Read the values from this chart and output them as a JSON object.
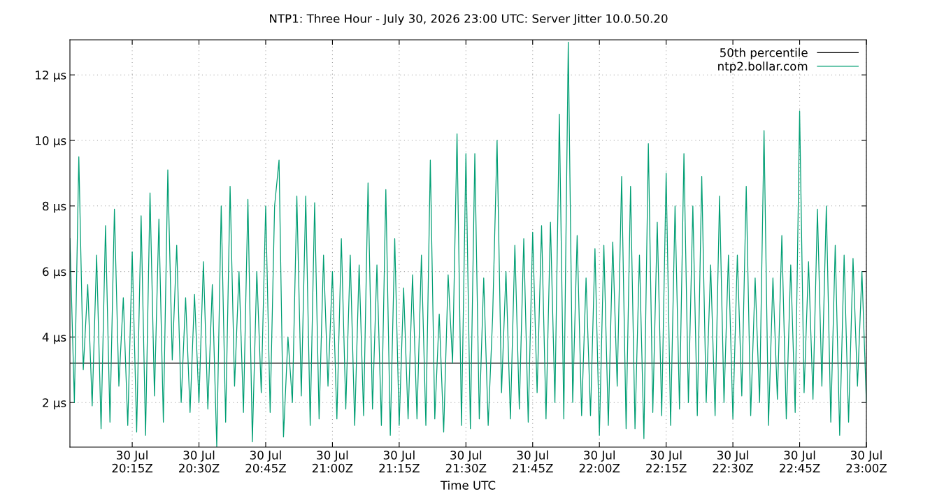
{
  "chart_data": {
    "type": "line",
    "title": "NTP1: Three Hour - July 30, 2026 23:00 UTC: Server Jitter 10.0.50.20",
    "xlabel": "Time UTC",
    "xlim": [
      "2026-07-30T20:01",
      "2026-07-30T23:00"
    ],
    "xticks": [
      {
        "value": "2026-07-30T20:15",
        "label": "30 Jul\n20:15Z"
      },
      {
        "value": "2026-07-30T20:30",
        "label": "30 Jul\n20:30Z"
      },
      {
        "value": "2026-07-30T20:45",
        "label": "30 Jul\n20:45Z"
      },
      {
        "value": "2026-07-30T21:00",
        "label": "30 Jul\n21:00Z"
      },
      {
        "value": "2026-07-30T21:15",
        "label": "30 Jul\n21:15Z"
      },
      {
        "value": "2026-07-30T21:30",
        "label": "30 Jul\n21:30Z"
      },
      {
        "value": "2026-07-30T21:45",
        "label": "30 Jul\n21:45Z"
      },
      {
        "value": "2026-07-30T22:00",
        "label": "30 Jul\n22:00Z"
      },
      {
        "value": "2026-07-30T22:15",
        "label": "30 Jul\n22:15Z"
      },
      {
        "value": "2026-07-30T22:30",
        "label": "30 Jul\n22:30Z"
      },
      {
        "value": "2026-07-30T22:45",
        "label": "30 Jul\n22:45Z"
      },
      {
        "value": "2026-07-30T23:00",
        "label": "30 Jul\n23:00Z"
      }
    ],
    "ylim": [
      0.64,
      13.07
    ],
    "yticks": [
      {
        "value": 2,
        "label": "2 µs"
      },
      {
        "value": 4,
        "label": "4 µs"
      },
      {
        "value": 6,
        "label": "6 µs"
      },
      {
        "value": 8,
        "label": "8 µs"
      },
      {
        "value": 10,
        "label": "10 µs"
      },
      {
        "value": 12,
        "label": "12 µs"
      }
    ],
    "grid": true,
    "legend": "top right",
    "line_style": "solid",
    "series": [
      {
        "name": "50th percentile",
        "color": "#000000",
        "x": [
          "2026-07-30T20:01",
          "2026-07-30T23:00"
        ],
        "values": [
          3.2,
          3.2
        ]
      },
      {
        "name": "ntp2.bollar.com",
        "color": "#009e73",
        "x": [
          "2026-07-30T20:01",
          "2026-07-30T20:02",
          "2026-07-30T20:03",
          "2026-07-30T20:04",
          "2026-07-30T20:05",
          "2026-07-30T20:06",
          "2026-07-30T20:07",
          "2026-07-30T20:08",
          "2026-07-30T20:09",
          "2026-07-30T20:10",
          "2026-07-30T20:11",
          "2026-07-30T20:12",
          "2026-07-30T20:13",
          "2026-07-30T20:14",
          "2026-07-30T20:15",
          "2026-07-30T20:16",
          "2026-07-30T20:17",
          "2026-07-30T20:18",
          "2026-07-30T20:19",
          "2026-07-30T20:20",
          "2026-07-30T20:21",
          "2026-07-30T20:22",
          "2026-07-30T20:23",
          "2026-07-30T20:24",
          "2026-07-30T20:25",
          "2026-07-30T20:26",
          "2026-07-30T20:27",
          "2026-07-30T20:28",
          "2026-07-30T20:29",
          "2026-07-30T20:30",
          "2026-07-30T20:31",
          "2026-07-30T20:32",
          "2026-07-30T20:33",
          "2026-07-30T20:34",
          "2026-07-30T20:35",
          "2026-07-30T20:36",
          "2026-07-30T20:37",
          "2026-07-30T20:38",
          "2026-07-30T20:39",
          "2026-07-30T20:40",
          "2026-07-30T20:41",
          "2026-07-30T20:42",
          "2026-07-30T20:43",
          "2026-07-30T20:44",
          "2026-07-30T20:45",
          "2026-07-30T20:46",
          "2026-07-30T20:47",
          "2026-07-30T20:48",
          "2026-07-30T20:49",
          "2026-07-30T20:50",
          "2026-07-30T20:51",
          "2026-07-30T20:52",
          "2026-07-30T20:53",
          "2026-07-30T20:54",
          "2026-07-30T20:55",
          "2026-07-30T20:56",
          "2026-07-30T20:57",
          "2026-07-30T20:58",
          "2026-07-30T20:59",
          "2026-07-30T21:00",
          "2026-07-30T21:01",
          "2026-07-30T21:02",
          "2026-07-30T21:03",
          "2026-07-30T21:04",
          "2026-07-30T21:05",
          "2026-07-30T21:06",
          "2026-07-30T21:07",
          "2026-07-30T21:08",
          "2026-07-30T21:09",
          "2026-07-30T21:10",
          "2026-07-30T21:11",
          "2026-07-30T21:12",
          "2026-07-30T21:13",
          "2026-07-30T21:14",
          "2026-07-30T21:15",
          "2026-07-30T21:16",
          "2026-07-30T21:17",
          "2026-07-30T21:18",
          "2026-07-30T21:19",
          "2026-07-30T21:20",
          "2026-07-30T21:21",
          "2026-07-30T21:22",
          "2026-07-30T21:23",
          "2026-07-30T21:24",
          "2026-07-30T21:25",
          "2026-07-30T21:26",
          "2026-07-30T21:27",
          "2026-07-30T21:28",
          "2026-07-30T21:29",
          "2026-07-30T21:30",
          "2026-07-30T21:31",
          "2026-07-30T21:32",
          "2026-07-30T21:33",
          "2026-07-30T21:34",
          "2026-07-30T21:35",
          "2026-07-30T21:36",
          "2026-07-30T21:37",
          "2026-07-30T21:38",
          "2026-07-30T21:39",
          "2026-07-30T21:40",
          "2026-07-30T21:41",
          "2026-07-30T21:42",
          "2026-07-30T21:43",
          "2026-07-30T21:44",
          "2026-07-30T21:45",
          "2026-07-30T21:46",
          "2026-07-30T21:47",
          "2026-07-30T21:48",
          "2026-07-30T21:49",
          "2026-07-30T21:50",
          "2026-07-30T21:51",
          "2026-07-30T21:52",
          "2026-07-30T21:53",
          "2026-07-30T21:54",
          "2026-07-30T21:55",
          "2026-07-30T21:56",
          "2026-07-30T21:57",
          "2026-07-30T21:58",
          "2026-07-30T21:59",
          "2026-07-30T22:00",
          "2026-07-30T22:01",
          "2026-07-30T22:02",
          "2026-07-30T22:03",
          "2026-07-30T22:04",
          "2026-07-30T22:05",
          "2026-07-30T22:06",
          "2026-07-30T22:07",
          "2026-07-30T22:08",
          "2026-07-30T22:09",
          "2026-07-30T22:10",
          "2026-07-30T22:11",
          "2026-07-30T22:12",
          "2026-07-30T22:13",
          "2026-07-30T22:14",
          "2026-07-30T22:15",
          "2026-07-30T22:16",
          "2026-07-30T22:17",
          "2026-07-30T22:18",
          "2026-07-30T22:19",
          "2026-07-30T22:20",
          "2026-07-30T22:21",
          "2026-07-30T22:22",
          "2026-07-30T22:23",
          "2026-07-30T22:24",
          "2026-07-30T22:25",
          "2026-07-30T22:26",
          "2026-07-30T22:27",
          "2026-07-30T22:28",
          "2026-07-30T22:29",
          "2026-07-30T22:30",
          "2026-07-30T22:31",
          "2026-07-30T22:32",
          "2026-07-30T22:33",
          "2026-07-30T22:34",
          "2026-07-30T22:35",
          "2026-07-30T22:36",
          "2026-07-30T22:37",
          "2026-07-30T22:38",
          "2026-07-30T22:39",
          "2026-07-30T22:40",
          "2026-07-30T22:41",
          "2026-07-30T22:42",
          "2026-07-30T22:43",
          "2026-07-30T22:44",
          "2026-07-30T22:45",
          "2026-07-30T22:46",
          "2026-07-30T22:47",
          "2026-07-30T22:48",
          "2026-07-30T22:49",
          "2026-07-30T22:50",
          "2026-07-30T22:51",
          "2026-07-30T22:52",
          "2026-07-30T22:53",
          "2026-07-30T22:54",
          "2026-07-30T22:55",
          "2026-07-30T22:56",
          "2026-07-30T22:57",
          "2026-07-30T22:58",
          "2026-07-30T22:59",
          "2026-07-30T23:00"
        ],
        "values": [
          7.0,
          2.0,
          9.5,
          3.0,
          5.6,
          1.9,
          6.5,
          1.2,
          7.4,
          1.4,
          7.9,
          2.5,
          5.2,
          1.3,
          6.6,
          1.1,
          7.7,
          1.0,
          8.4,
          2.2,
          7.6,
          1.4,
          9.1,
          3.3,
          6.8,
          2.0,
          5.2,
          1.7,
          5.3,
          2.0,
          6.3,
          1.8,
          5.6,
          0.65,
          8.0,
          1.4,
          8.6,
          2.5,
          6.0,
          1.7,
          8.2,
          0.8,
          6.0,
          2.3,
          8.0,
          1.7,
          8.0,
          9.4,
          0.95,
          4.0,
          2.0,
          8.3,
          2.2,
          8.3,
          1.3,
          8.1,
          1.5,
          6.5,
          2.5,
          6.0,
          1.5,
          7.0,
          1.8,
          6.5,
          1.3,
          6.2,
          1.6,
          8.7,
          1.8,
          6.2,
          1.3,
          8.5,
          1.0,
          7.0,
          1.3,
          5.5,
          1.5,
          5.9,
          1.5,
          6.5,
          1.3,
          9.4,
          1.5,
          4.7,
          1.1,
          5.9,
          3.2,
          10.2,
          1.3,
          9.6,
          1.2,
          9.6,
          1.5,
          5.8,
          1.3,
          4.6,
          10.0,
          2.3,
          6.0,
          1.5,
          6.8,
          1.8,
          7.0,
          1.4,
          7.2,
          2.3,
          7.4,
          1.5,
          7.5,
          2.0,
          10.8,
          1.5,
          13.0,
          2.0,
          7.1,
          1.6,
          5.8,
          1.6,
          6.7,
          1.0,
          6.8,
          1.3,
          6.9,
          2.5,
          8.9,
          1.2,
          8.6,
          1.2,
          6.5,
          0.9,
          9.9,
          1.7,
          7.5,
          1.6,
          9.0,
          1.3,
          8.0,
          1.8,
          9.6,
          2.0,
          8.0,
          1.6,
          8.9,
          2.0,
          6.2,
          1.6,
          8.3,
          2.0,
          6.5,
          1.5,
          6.5,
          2.2,
          8.6,
          1.6,
          5.8,
          2.0,
          10.3,
          1.3,
          5.8,
          2.1,
          7.1,
          1.5,
          6.2,
          1.7,
          10.9,
          2.3,
          6.3,
          2.1,
          7.9,
          2.5,
          8.0,
          1.4,
          6.8,
          1.0,
          6.5,
          1.4,
          6.4,
          2.5,
          6.0,
          2.0
        ]
      }
    ]
  }
}
